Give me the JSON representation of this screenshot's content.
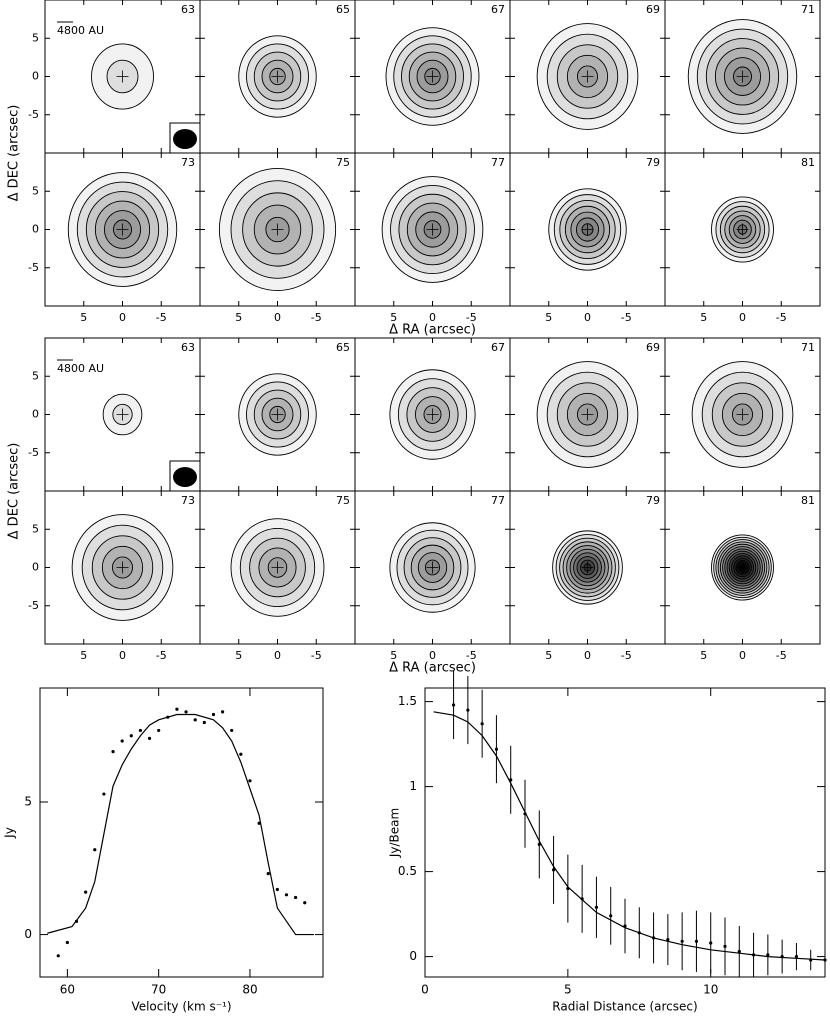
{
  "chart_data": [
    {
      "type": "contour",
      "scale_bar_label": "4800 AU",
      "xlabel": "Δ RA (arcsec)",
      "ylabel": "Δ DEC (arcsec)",
      "xlim": [
        10,
        -10
      ],
      "ylim": [
        -10,
        10
      ],
      "xticks": [
        5,
        0,
        -5
      ],
      "yticks": [
        -5,
        0,
        5
      ],
      "panels": [
        {
          "label": "63",
          "contours": 2,
          "radius": 4
        },
        {
          "label": "65",
          "contours": 5,
          "radius": 5
        },
        {
          "label": "67",
          "contours": 6,
          "radius": 6
        },
        {
          "label": "69",
          "contours": 5,
          "radius": 6.5
        },
        {
          "label": "71",
          "contours": 6,
          "radius": 7
        },
        {
          "label": "73",
          "contours": 6,
          "radius": 7
        },
        {
          "label": "75",
          "contours": 5,
          "radius": 7.5
        },
        {
          "label": "77",
          "contours": 6,
          "radius": 6.5
        },
        {
          "label": "79",
          "contours": 7,
          "radius": 5
        },
        {
          "label": "81",
          "contours": 7,
          "radius": 4
        }
      ]
    },
    {
      "type": "contour",
      "scale_bar_label": "4800 AU",
      "xlabel": "Δ RA (arcsec)",
      "ylabel": "Δ DEC (arcsec)",
      "xlim": [
        10,
        -10
      ],
      "ylim": [
        -10,
        10
      ],
      "xticks": [
        5,
        0,
        -5
      ],
      "yticks": [
        -5,
        0,
        5
      ],
      "panels": [
        {
          "label": "63",
          "contours": 2,
          "radius": 2.5
        },
        {
          "label": "65",
          "contours": 5,
          "radius": 5
        },
        {
          "label": "67",
          "contours": 5,
          "radius": 5.5
        },
        {
          "label": "69",
          "contours": 5,
          "radius": 6.5
        },
        {
          "label": "71",
          "contours": 5,
          "radius": 6.5
        },
        {
          "label": "73",
          "contours": 5,
          "radius": 6.5
        },
        {
          "label": "75",
          "contours": 5,
          "radius": 6
        },
        {
          "label": "77",
          "contours": 6,
          "radius": 5.5
        },
        {
          "label": "79",
          "contours": 10,
          "radius": 4.5
        },
        {
          "label": "81",
          "contours": 14,
          "radius": 4
        }
      ]
    },
    {
      "type": "line",
      "xlabel": "Velocity (km s⁻¹)",
      "ylabel": "Jy",
      "xlim": [
        57,
        88
      ],
      "ylim": [
        -1.6,
        9.3
      ],
      "xticks": [
        60,
        70,
        80
      ],
      "yticks": [
        0,
        5
      ],
      "series": [
        {
          "style": "solid",
          "color": "#000000",
          "x": [
            57.8,
            60.5,
            62,
            63,
            64,
            65,
            66,
            67,
            68,
            69,
            70,
            72,
            74,
            76,
            77,
            78,
            79,
            80,
            81,
            82,
            83,
            85,
            87
          ],
          "values": [
            0.05,
            0.3,
            1.0,
            2.0,
            3.8,
            5.6,
            6.4,
            7.0,
            7.5,
            7.9,
            8.1,
            8.3,
            8.3,
            8.1,
            7.8,
            7.3,
            6.5,
            5.5,
            4.5,
            2.7,
            1.0,
            0.0,
            0.0
          ]
        },
        {
          "style": "points",
          "color": "#000000",
          "x": [
            59,
            60,
            61,
            62,
            63,
            64,
            65,
            66,
            67,
            68,
            69,
            70,
            71,
            72,
            73,
            74,
            75,
            76,
            77,
            78,
            79,
            80,
            81,
            82,
            83,
            84,
            85,
            86
          ],
          "values": [
            -0.8,
            -0.3,
            0.5,
            1.6,
            3.2,
            5.3,
            6.9,
            7.3,
            7.5,
            7.7,
            7.4,
            7.7,
            8.2,
            8.5,
            8.4,
            8.1,
            8.0,
            8.3,
            8.4,
            7.7,
            6.8,
            5.8,
            4.2,
            2.3,
            1.7,
            1.5,
            1.4,
            1.2
          ]
        }
      ]
    },
    {
      "type": "errorbar",
      "xlabel": "Radial Distance (arcsec)",
      "ylabel": "Jy/Beam",
      "xlim": [
        0,
        14
      ],
      "ylim": [
        -0.12,
        1.58
      ],
      "xticks": [
        0,
        5,
        10
      ],
      "yticks": [
        0,
        0.5,
        1,
        1.5
      ],
      "series": [
        {
          "style": "points",
          "color": "#000000",
          "x": [
            1,
            1.5,
            2,
            2.5,
            3,
            3.5,
            4,
            4.5,
            5,
            5.5,
            6,
            6.5,
            7,
            7.5,
            8,
            8.5,
            9,
            9.5,
            10,
            10.5,
            11,
            11.5,
            12,
            12.5,
            13,
            13.5,
            14
          ],
          "values": [
            1.48,
            1.45,
            1.37,
            1.22,
            1.04,
            0.84,
            0.66,
            0.51,
            0.4,
            0.34,
            0.29,
            0.24,
            0.18,
            0.14,
            0.11,
            0.1,
            0.09,
            0.09,
            0.08,
            0.06,
            0.03,
            0.01,
            0.01,
            0.0,
            0.0,
            -0.02,
            -0.02
          ],
          "errors": [
            0.2,
            0.2,
            0.2,
            0.2,
            0.2,
            0.2,
            0.2,
            0.2,
            0.2,
            0.2,
            0.18,
            0.17,
            0.16,
            0.15,
            0.15,
            0.15,
            0.17,
            0.18,
            0.18,
            0.17,
            0.15,
            0.13,
            0.12,
            0.1,
            0.08,
            0.06,
            0.05
          ]
        },
        {
          "style": "solid",
          "color": "#000000",
          "x": [
            0.3,
            1,
            1.5,
            2,
            2.5,
            3,
            3.5,
            4,
            4.5,
            5,
            6,
            7,
            8,
            9,
            10,
            11,
            12,
            13,
            14
          ],
          "values": [
            1.44,
            1.42,
            1.38,
            1.3,
            1.18,
            1.02,
            0.85,
            0.68,
            0.53,
            0.41,
            0.26,
            0.17,
            0.11,
            0.07,
            0.04,
            0.02,
            0.0,
            -0.01,
            -0.02
          ]
        }
      ]
    }
  ]
}
